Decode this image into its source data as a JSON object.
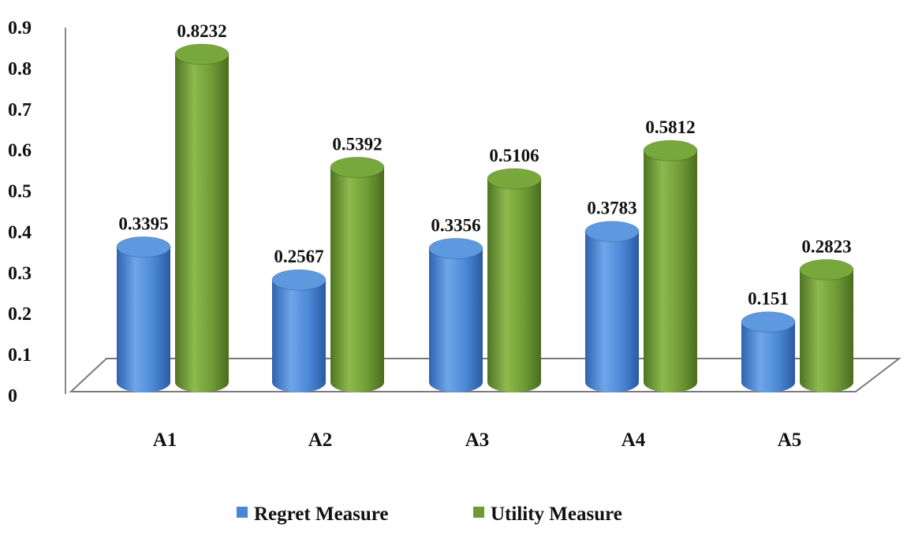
{
  "chart_data": {
    "type": "bar",
    "categories": [
      "A1",
      "A2",
      "A3",
      "A4",
      "A5"
    ],
    "series": [
      {
        "name": "Regret Measure",
        "values": [
          0.3395,
          0.2567,
          0.3356,
          0.3783,
          0.151
        ],
        "labels": [
          "0.3395",
          "0.2567",
          "0.3356",
          "0.3783",
          "0.151"
        ],
        "color": "#4A86D4"
      },
      {
        "name": "Utility Measure",
        "values": [
          0.8232,
          0.5392,
          0.5106,
          0.5812,
          0.2823
        ],
        "labels": [
          "0.8232",
          "0.5392",
          "0.5106",
          "0.5812",
          "0.2823"
        ],
        "color": "#6E9A34"
      }
    ],
    "yticks": [
      "0",
      "0.1",
      "0.2",
      "0.3",
      "0.4",
      "0.5",
      "0.6",
      "0.7",
      "0.8",
      "0.9"
    ],
    "ylim": [
      0,
      0.9
    ],
    "style": "3d-cylinder",
    "grid": false,
    "legend": "bottom"
  }
}
